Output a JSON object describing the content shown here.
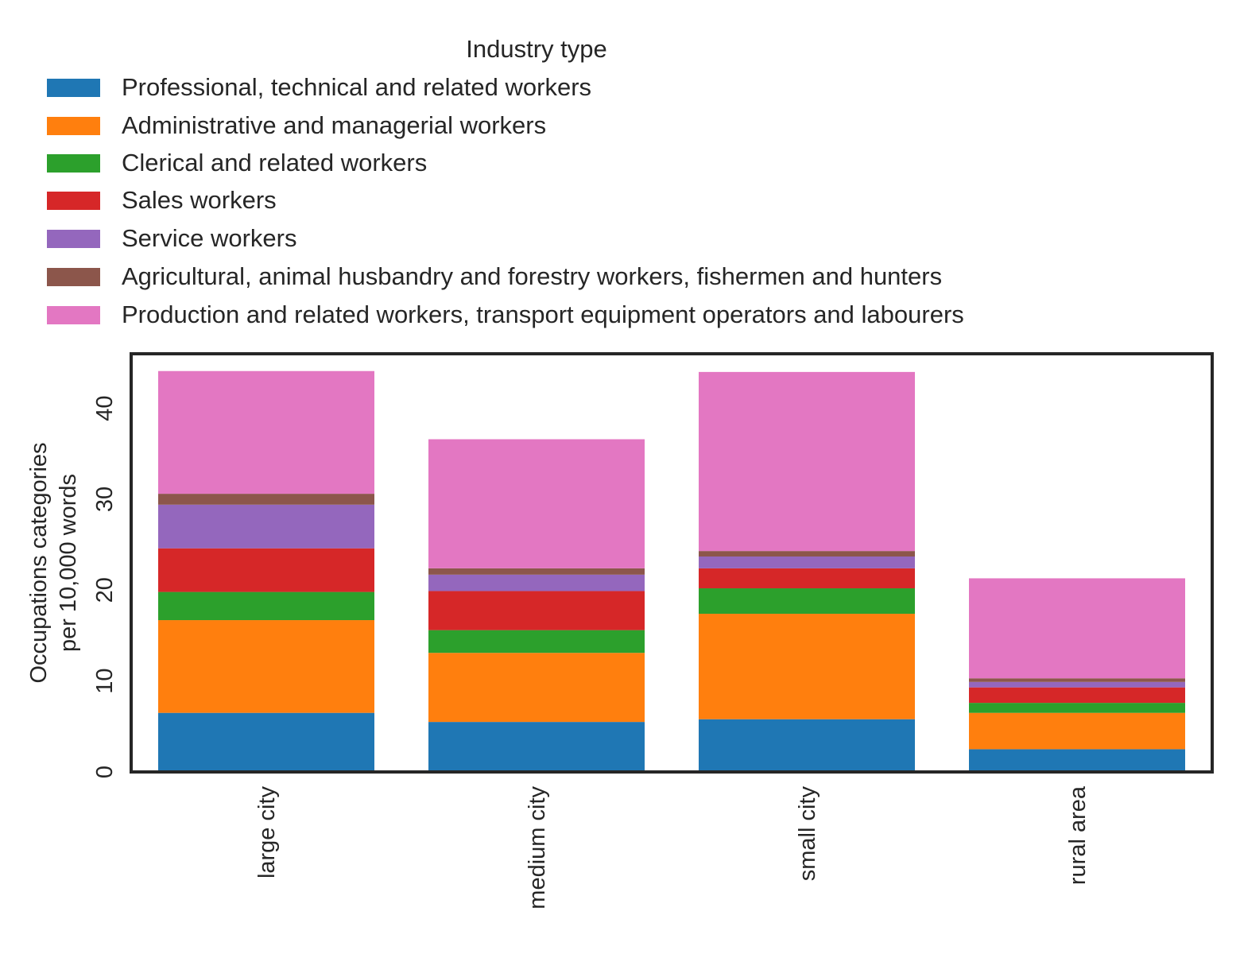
{
  "chart_data": {
    "type": "bar",
    "stacked": true,
    "categories": [
      "large city",
      "medium city",
      "small city",
      "rural area"
    ],
    "ylabel_lines": [
      "Occupations categories",
      "per 10,000 words"
    ],
    "ylim": [
      0,
      46
    ],
    "yticks": [
      0,
      10,
      20,
      30,
      40
    ],
    "grid": false,
    "legend": {
      "title": "Industry type",
      "placement": "above"
    },
    "series": [
      {
        "name": "Professional, technical and related workers",
        "color": "#1f77b4",
        "values": [
          6.5,
          5.5,
          5.8,
          2.5
        ]
      },
      {
        "name": "Administrative and managerial workers",
        "color": "#ff7f0e",
        "values": [
          10.2,
          7.6,
          11.6,
          4.0
        ]
      },
      {
        "name": "Clerical and related workers",
        "color": "#2ca02c",
        "values": [
          3.1,
          2.5,
          2.8,
          1.1
        ]
      },
      {
        "name": "Sales workers",
        "color": "#d62728",
        "values": [
          4.8,
          4.3,
          2.2,
          1.7
        ]
      },
      {
        "name": "Service workers",
        "color": "#9467bd",
        "values": [
          4.8,
          1.8,
          1.3,
          0.6
        ]
      },
      {
        "name": "Agricultural, animal husbandry and forestry workers, fishermen and hunters",
        "color": "#8c564b",
        "values": [
          1.2,
          0.7,
          0.6,
          0.4
        ]
      },
      {
        "name": "Production and related workers, transport equipment operators and labourers",
        "color": "#e377c2",
        "values": [
          13.5,
          14.2,
          19.7,
          11.0
        ]
      }
    ]
  }
}
